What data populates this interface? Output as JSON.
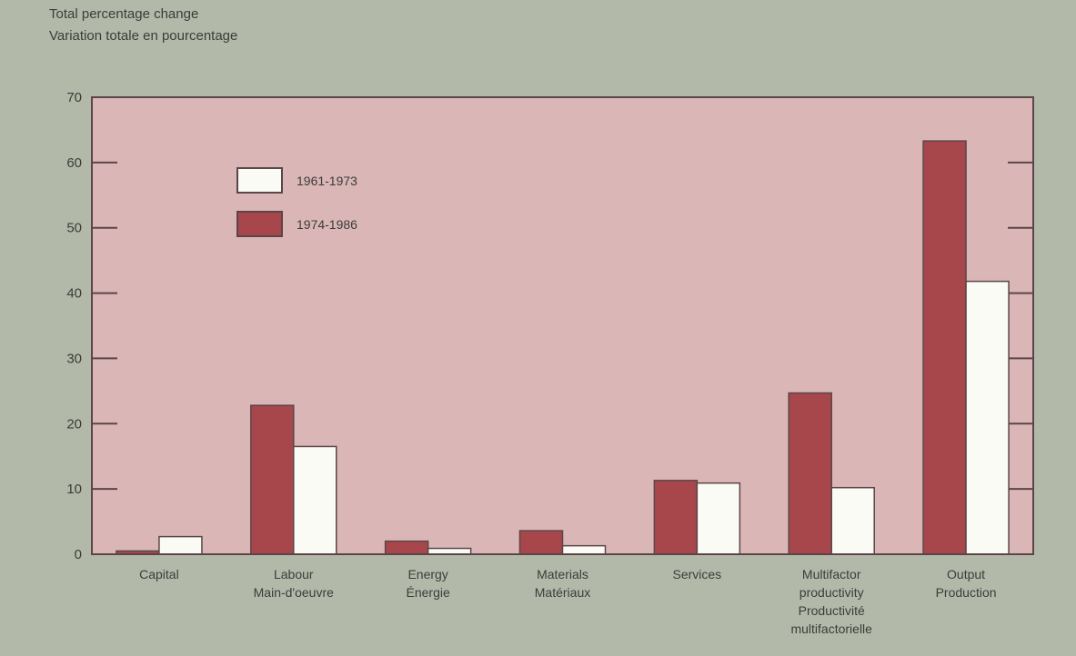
{
  "chart_data": {
    "type": "bar",
    "ylabel": [
      "Total percentage change",
      "Variation totale en pourcentage"
    ],
    "ylim": [
      0,
      70
    ],
    "yticks": [
      0,
      10,
      20,
      30,
      40,
      50,
      60,
      70
    ],
    "categories": [
      [
        "Capital"
      ],
      [
        "Labour",
        "Main-d'oeuvre"
      ],
      [
        "Energy",
        "Énergie"
      ],
      [
        "Materials",
        "Matériaux"
      ],
      [
        "Services"
      ],
      [
        "Multifactor",
        "productivity",
        "Productivité",
        "multifactorielle"
      ],
      [
        "Output",
        "Production"
      ]
    ],
    "series": [
      {
        "name": "1974-1986",
        "values": [
          0.5,
          22.8,
          2.0,
          3.6,
          11.3,
          24.7,
          63.3
        ]
      },
      {
        "name": "1961-1973",
        "values": [
          2.7,
          16.5,
          0.9,
          1.3,
          10.9,
          10.2,
          41.8
        ]
      }
    ],
    "legend": {
      "placement": "top-left",
      "order": [
        "1961-1973",
        "1974-1986"
      ]
    },
    "colors": {
      "background": "#b3b9a9",
      "plot_area": "#dbb6b6",
      "series_1974_1986": "#a7474c",
      "series_1961_1973": "#fbfbf6",
      "axis": "#5a4648",
      "text": "#3a3d3a"
    },
    "grid": false
  }
}
